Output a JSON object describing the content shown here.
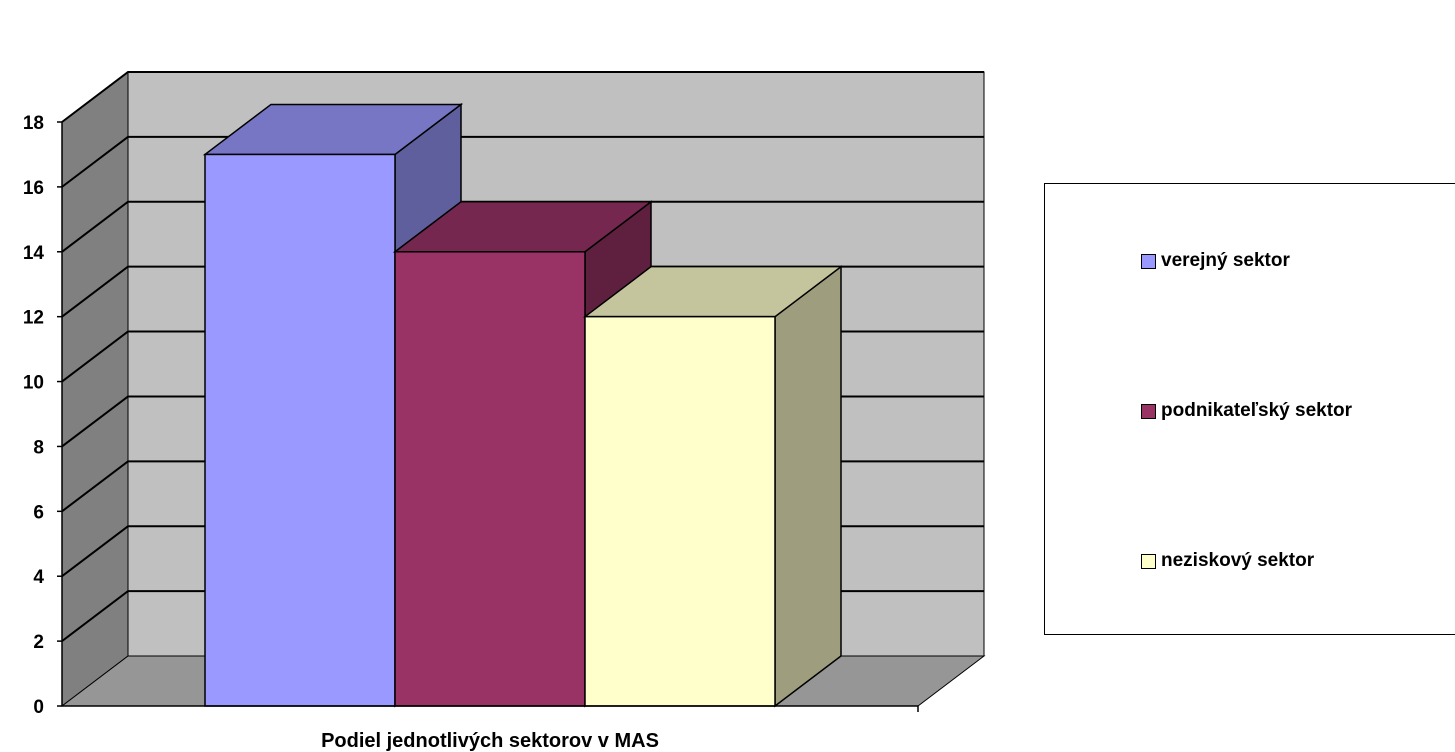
{
  "chart_data": {
    "type": "bar",
    "variant": "3d-clustered-column",
    "categories": [
      "Podiel jednotlivých sektorov v MAS"
    ],
    "series": [
      {
        "name": "verejný sektor",
        "values": [
          17
        ],
        "color": "#9999ff"
      },
      {
        "name": "podnikateľský sektor",
        "values": [
          14
        ],
        "color": "#993366"
      },
      {
        "name": "neziskový sektor",
        "values": [
          12
        ],
        "color": "#ffffcc"
      }
    ],
    "ylim": [
      0,
      18
    ],
    "yticks": [
      "0",
      "2",
      "4",
      "6",
      "8",
      "10",
      "12",
      "14",
      "16",
      "18"
    ],
    "grid": true,
    "legend_position": "right",
    "colors": {
      "wall": "#c0c0c0",
      "side_wall": "#808080",
      "floor": "#969696"
    }
  }
}
